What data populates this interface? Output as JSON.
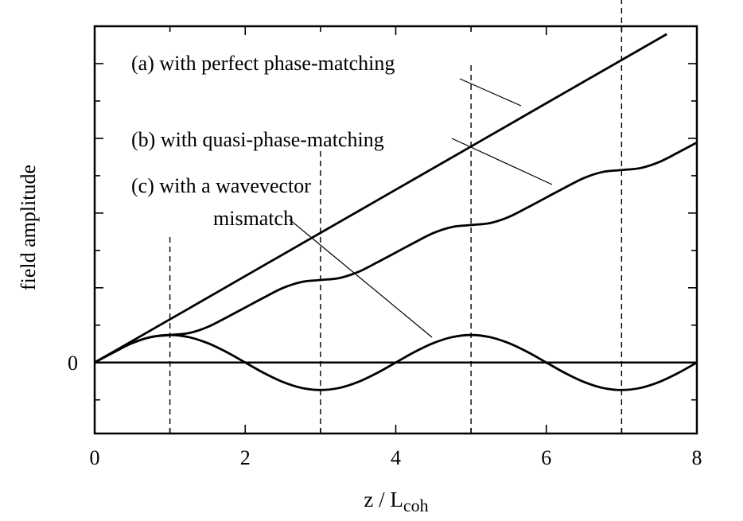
{
  "chart_data": {
    "type": "line",
    "xlabel": "z / L",
    "xlabel_sub": "coh",
    "ylabel": "field amplitude",
    "xlim": [
      0,
      8
    ],
    "ylim": [
      -0.95,
      4.5
    ],
    "x_ticks": [
      0,
      2,
      4,
      6,
      8
    ],
    "x_tick_labels": [
      "0",
      "2",
      "4",
      "6",
      "8"
    ],
    "y_tick_labels": [
      {
        "value": 0,
        "label": "0"
      }
    ],
    "grid": false,
    "series": [
      {
        "name": "(a)  with perfect phase-matching",
        "label_key": "a",
        "x": [
          0,
          0.5,
          1,
          1.5,
          2,
          2.5,
          3,
          3.5,
          4,
          4.5,
          5,
          5.5,
          6,
          6.5,
          7,
          7.5,
          7.6
        ],
        "y": [
          0,
          0.289,
          0.578,
          0.867,
          1.157,
          1.446,
          1.735,
          2.024,
          2.313,
          2.602,
          2.891,
          3.18,
          3.47,
          3.759,
          4.048,
          4.337,
          4.395
        ]
      },
      {
        "name": "(b)  with quasi-phase-matching",
        "label_key": "b",
        "x": [
          0,
          0.25,
          0.5,
          0.75,
          1,
          1.25,
          1.5,
          1.75,
          2,
          2.25,
          2.5,
          2.75,
          3,
          3.25,
          3.5,
          3.75,
          4,
          4.25,
          4.5,
          4.75,
          5,
          5.25,
          5.5,
          5.75,
          6,
          6.25,
          6.5,
          6.75,
          7,
          7.25,
          7.5,
          7.75,
          8
        ],
        "y": [
          0,
          0.134,
          0.261,
          0.342,
          0.368,
          0.394,
          0.475,
          0.602,
          0.736,
          0.87,
          0.997,
          1.078,
          1.104,
          1.13,
          1.211,
          1.338,
          1.472,
          1.606,
          1.733,
          1.814,
          1.84,
          1.866,
          1.947,
          2.074,
          2.208,
          2.342,
          2.469,
          2.55,
          2.576,
          2.602,
          2.683,
          2.81,
          2.944
        ]
      },
      {
        "name": "(c)  with a wavevector mismatch",
        "label_key": "c",
        "x": [
          0,
          0.25,
          0.5,
          0.75,
          1,
          1.25,
          1.5,
          1.75,
          2,
          2.25,
          2.5,
          2.75,
          3,
          3.25,
          3.5,
          3.75,
          4,
          4.25,
          4.5,
          4.75,
          5,
          5.25,
          5.5,
          5.75,
          6,
          6.25,
          6.5,
          6.75,
          7,
          7.25,
          7.5,
          7.75,
          8
        ],
        "y": [
          0,
          0.141,
          0.26,
          0.34,
          0.368,
          0.34,
          0.26,
          0.141,
          0,
          -0.141,
          -0.26,
          -0.34,
          -0.368,
          -0.34,
          -0.26,
          -0.141,
          0,
          0.141,
          0.26,
          0.34,
          0.368,
          0.34,
          0.26,
          0.141,
          0,
          -0.141,
          -0.26,
          -0.34,
          -0.368,
          -0.34,
          -0.26,
          -0.141,
          0
        ]
      }
    ],
    "zero_line": {
      "y": 0
    },
    "dashed_markers_x": [
      1,
      3,
      5,
      7
    ],
    "annotations": {
      "a": {
        "line1": "(a)  with perfect phase-matching",
        "line2": ""
      },
      "b": {
        "line1": "(b)  with quasi-phase-matching",
        "line2": ""
      },
      "c": {
        "line1": "(c)  with a wavevector",
        "line2": "mismatch"
      }
    },
    "colors": {
      "line": "#000000",
      "background": "#ffffff"
    }
  }
}
